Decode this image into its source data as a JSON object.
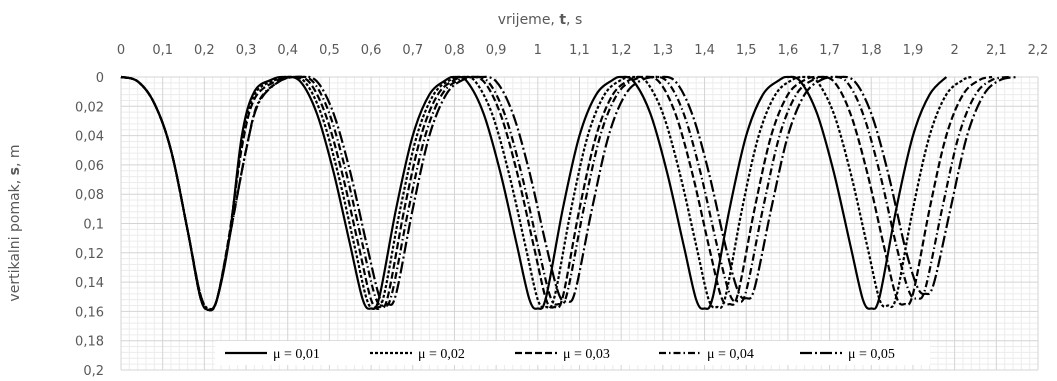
{
  "chart_data": {
    "type": "line",
    "title": "",
    "xlabel_parts": [
      "vrijeme, ",
      "t",
      ", s"
    ],
    "ylabel_parts": [
      "vertikalni pomak, ",
      "s",
      ", m"
    ],
    "xlim": [
      0,
      2.2
    ],
    "ylim": [
      0,
      0.2
    ],
    "y_inverted": true,
    "x_axis_position": "top",
    "x_ticks": [
      "0",
      "0,1",
      "0,2",
      "0,3",
      "0,4",
      "0,5",
      "0,6",
      "0,7",
      "0,8",
      "0,9",
      "1",
      "1,1",
      "1,2",
      "1,3",
      "1,4",
      "1,5",
      "1,6",
      "1,7",
      "1,8",
      "1,9",
      "2",
      "2,1",
      "2,2"
    ],
    "y_ticks": [
      "0",
      "0,02",
      "0,04",
      "0,06",
      "0,08",
      "0,1",
      "0,12",
      "0,14",
      "0,16",
      "0,18",
      "0,2"
    ],
    "grid": "major and minor",
    "legend_position": "bottom-inside",
    "series": [
      {
        "name": "μ = 0,01",
        "dash": "solid",
        "points": [
          [
            0,
            0
          ],
          [
            0.04,
            0.003
          ],
          [
            0.08,
            0.018
          ],
          [
            0.12,
            0.05
          ],
          [
            0.16,
            0.105
          ],
          [
            0.19,
            0.15
          ],
          [
            0.21,
            0.159
          ],
          [
            0.23,
            0.152
          ],
          [
            0.26,
            0.11
          ],
          [
            0.29,
            0.04
          ],
          [
            0.32,
            0.01
          ],
          [
            0.36,
            0.002
          ],
          [
            0.39,
            0
          ],
          [
            0.43,
            0.003
          ],
          [
            0.47,
            0.025
          ],
          [
            0.51,
            0.065
          ],
          [
            0.55,
            0.115
          ],
          [
            0.58,
            0.152
          ],
          [
            0.6,
            0.158
          ],
          [
            0.62,
            0.15
          ],
          [
            0.66,
            0.09
          ],
          [
            0.7,
            0.04
          ],
          [
            0.74,
            0.012
          ],
          [
            0.78,
            0.002
          ],
          [
            0.8,
            0
          ],
          [
            0.83,
            0.003
          ],
          [
            0.87,
            0.025
          ],
          [
            0.91,
            0.065
          ],
          [
            0.95,
            0.115
          ],
          [
            0.98,
            0.152
          ],
          [
            1.0,
            0.158
          ],
          [
            1.02,
            0.15
          ],
          [
            1.06,
            0.09
          ],
          [
            1.1,
            0.04
          ],
          [
            1.14,
            0.012
          ],
          [
            1.18,
            0.002
          ],
          [
            1.2,
            0
          ],
          [
            1.23,
            0.003
          ],
          [
            1.27,
            0.025
          ],
          [
            1.31,
            0.065
          ],
          [
            1.35,
            0.115
          ],
          [
            1.38,
            0.152
          ],
          [
            1.4,
            0.158
          ],
          [
            1.42,
            0.15
          ],
          [
            1.46,
            0.09
          ],
          [
            1.5,
            0.04
          ],
          [
            1.54,
            0.012
          ],
          [
            1.58,
            0.002
          ],
          [
            1.6,
            0
          ],
          [
            1.63,
            0.003
          ],
          [
            1.67,
            0.025
          ],
          [
            1.71,
            0.065
          ],
          [
            1.75,
            0.115
          ],
          [
            1.78,
            0.152
          ],
          [
            1.8,
            0.158
          ],
          [
            1.82,
            0.15
          ],
          [
            1.86,
            0.09
          ],
          [
            1.9,
            0.04
          ],
          [
            1.94,
            0.012
          ],
          [
            1.98,
            0
          ]
        ]
      },
      {
        "name": "μ = 0,02",
        "dash": "short-dash",
        "points": [
          [
            0,
            0
          ],
          [
            0.04,
            0.003
          ],
          [
            0.08,
            0.018
          ],
          [
            0.12,
            0.05
          ],
          [
            0.16,
            0.105
          ],
          [
            0.19,
            0.15
          ],
          [
            0.21,
            0.159
          ],
          [
            0.23,
            0.152
          ],
          [
            0.26,
            0.108
          ],
          [
            0.29,
            0.045
          ],
          [
            0.32,
            0.012
          ],
          [
            0.37,
            0.002
          ],
          [
            0.4,
            0
          ],
          [
            0.44,
            0.003
          ],
          [
            0.48,
            0.025
          ],
          [
            0.52,
            0.065
          ],
          [
            0.56,
            0.115
          ],
          [
            0.59,
            0.152
          ],
          [
            0.61,
            0.158
          ],
          [
            0.63,
            0.15
          ],
          [
            0.67,
            0.09
          ],
          [
            0.71,
            0.04
          ],
          [
            0.75,
            0.012
          ],
          [
            0.79,
            0.002
          ],
          [
            0.82,
            0
          ],
          [
            0.85,
            0.003
          ],
          [
            0.89,
            0.025
          ],
          [
            0.93,
            0.065
          ],
          [
            0.97,
            0.115
          ],
          [
            1.0,
            0.152
          ],
          [
            1.02,
            0.157
          ],
          [
            1.04,
            0.15
          ],
          [
            1.08,
            0.09
          ],
          [
            1.12,
            0.04
          ],
          [
            1.16,
            0.012
          ],
          [
            1.2,
            0.002
          ],
          [
            1.23,
            0
          ],
          [
            1.26,
            0.003
          ],
          [
            1.3,
            0.025
          ],
          [
            1.34,
            0.065
          ],
          [
            1.38,
            0.115
          ],
          [
            1.41,
            0.152
          ],
          [
            1.43,
            0.157
          ],
          [
            1.45,
            0.15
          ],
          [
            1.49,
            0.09
          ],
          [
            1.53,
            0.04
          ],
          [
            1.57,
            0.012
          ],
          [
            1.61,
            0.002
          ],
          [
            1.64,
            0
          ],
          [
            1.67,
            0.003
          ],
          [
            1.71,
            0.025
          ],
          [
            1.75,
            0.065
          ],
          [
            1.79,
            0.115
          ],
          [
            1.82,
            0.152
          ],
          [
            1.84,
            0.156
          ],
          [
            1.86,
            0.15
          ],
          [
            1.9,
            0.09
          ],
          [
            1.94,
            0.04
          ],
          [
            1.98,
            0.012
          ],
          [
            2.02,
            0.002
          ],
          [
            2.04,
            0
          ]
        ]
      },
      {
        "name": "μ = 0,03",
        "dash": "dash",
        "points": [
          [
            0,
            0
          ],
          [
            0.04,
            0.003
          ],
          [
            0.08,
            0.018
          ],
          [
            0.12,
            0.05
          ],
          [
            0.16,
            0.105
          ],
          [
            0.19,
            0.15
          ],
          [
            0.21,
            0.159
          ],
          [
            0.23,
            0.152
          ],
          [
            0.26,
            0.107
          ],
          [
            0.29,
            0.048
          ],
          [
            0.32,
            0.015
          ],
          [
            0.37,
            0.003
          ],
          [
            0.41,
            0
          ],
          [
            0.45,
            0.003
          ],
          [
            0.49,
            0.025
          ],
          [
            0.53,
            0.065
          ],
          [
            0.57,
            0.115
          ],
          [
            0.6,
            0.152
          ],
          [
            0.62,
            0.157
          ],
          [
            0.64,
            0.15
          ],
          [
            0.68,
            0.09
          ],
          [
            0.72,
            0.04
          ],
          [
            0.76,
            0.012
          ],
          [
            0.8,
            0.002
          ],
          [
            0.83,
            0
          ],
          [
            0.87,
            0.003
          ],
          [
            0.91,
            0.025
          ],
          [
            0.95,
            0.065
          ],
          [
            0.99,
            0.115
          ],
          [
            1.02,
            0.152
          ],
          [
            1.04,
            0.157
          ],
          [
            1.06,
            0.15
          ],
          [
            1.1,
            0.09
          ],
          [
            1.14,
            0.04
          ],
          [
            1.18,
            0.012
          ],
          [
            1.22,
            0.002
          ],
          [
            1.25,
            0
          ],
          [
            1.29,
            0.003
          ],
          [
            1.33,
            0.025
          ],
          [
            1.37,
            0.065
          ],
          [
            1.41,
            0.115
          ],
          [
            1.44,
            0.15
          ],
          [
            1.46,
            0.155
          ],
          [
            1.48,
            0.148
          ],
          [
            1.52,
            0.09
          ],
          [
            1.56,
            0.04
          ],
          [
            1.6,
            0.012
          ],
          [
            1.64,
            0.002
          ],
          [
            1.67,
            0
          ],
          [
            1.71,
            0.003
          ],
          [
            1.75,
            0.025
          ],
          [
            1.79,
            0.065
          ],
          [
            1.83,
            0.115
          ],
          [
            1.86,
            0.15
          ],
          [
            1.88,
            0.155
          ],
          [
            1.9,
            0.148
          ],
          [
            1.94,
            0.09
          ],
          [
            1.98,
            0.04
          ],
          [
            2.02,
            0.012
          ],
          [
            2.06,
            0.002
          ],
          [
            2.09,
            0
          ]
        ]
      },
      {
        "name": "μ = 0,04",
        "dash": "dash-dot",
        "points": [
          [
            0,
            0
          ],
          [
            0.04,
            0.003
          ],
          [
            0.08,
            0.018
          ],
          [
            0.12,
            0.05
          ],
          [
            0.16,
            0.105
          ],
          [
            0.19,
            0.148
          ],
          [
            0.21,
            0.158
          ],
          [
            0.23,
            0.152
          ],
          [
            0.26,
            0.11
          ],
          [
            0.3,
            0.05
          ],
          [
            0.33,
            0.017
          ],
          [
            0.38,
            0.003
          ],
          [
            0.42,
            0
          ],
          [
            0.46,
            0.003
          ],
          [
            0.5,
            0.025
          ],
          [
            0.54,
            0.065
          ],
          [
            0.58,
            0.115
          ],
          [
            0.61,
            0.15
          ],
          [
            0.63,
            0.156
          ],
          [
            0.65,
            0.148
          ],
          [
            0.69,
            0.09
          ],
          [
            0.73,
            0.04
          ],
          [
            0.77,
            0.012
          ],
          [
            0.81,
            0.002
          ],
          [
            0.84,
            0
          ],
          [
            0.88,
            0.003
          ],
          [
            0.92,
            0.025
          ],
          [
            0.96,
            0.065
          ],
          [
            1.0,
            0.115
          ],
          [
            1.03,
            0.15
          ],
          [
            1.05,
            0.155
          ],
          [
            1.07,
            0.148
          ],
          [
            1.11,
            0.09
          ],
          [
            1.15,
            0.04
          ],
          [
            1.19,
            0.012
          ],
          [
            1.23,
            0.002
          ],
          [
            1.27,
            0
          ],
          [
            1.31,
            0.003
          ],
          [
            1.35,
            0.025
          ],
          [
            1.39,
            0.065
          ],
          [
            1.43,
            0.115
          ],
          [
            1.46,
            0.148
          ],
          [
            1.48,
            0.153
          ],
          [
            1.5,
            0.146
          ],
          [
            1.54,
            0.09
          ],
          [
            1.58,
            0.04
          ],
          [
            1.62,
            0.012
          ],
          [
            1.66,
            0.002
          ],
          [
            1.7,
            0
          ],
          [
            1.74,
            0.003
          ],
          [
            1.78,
            0.025
          ],
          [
            1.82,
            0.065
          ],
          [
            1.86,
            0.115
          ],
          [
            1.89,
            0.146
          ],
          [
            1.91,
            0.151
          ],
          [
            1.93,
            0.144
          ],
          [
            1.97,
            0.09
          ],
          [
            2.01,
            0.04
          ],
          [
            2.05,
            0.012
          ],
          [
            2.09,
            0.002
          ],
          [
            2.13,
            0
          ]
        ]
      },
      {
        "name": "μ = 0,05",
        "dash": "long-dash-dot",
        "points": [
          [
            0,
            0
          ],
          [
            0.04,
            0.003
          ],
          [
            0.08,
            0.018
          ],
          [
            0.12,
            0.05
          ],
          [
            0.16,
            0.105
          ],
          [
            0.19,
            0.148
          ],
          [
            0.21,
            0.158
          ],
          [
            0.23,
            0.152
          ],
          [
            0.26,
            0.11
          ],
          [
            0.3,
            0.05
          ],
          [
            0.33,
            0.018
          ],
          [
            0.38,
            0.003
          ],
          [
            0.43,
            0
          ],
          [
            0.47,
            0.003
          ],
          [
            0.51,
            0.025
          ],
          [
            0.55,
            0.065
          ],
          [
            0.59,
            0.115
          ],
          [
            0.62,
            0.15
          ],
          [
            0.64,
            0.155
          ],
          [
            0.66,
            0.148
          ],
          [
            0.7,
            0.09
          ],
          [
            0.74,
            0.04
          ],
          [
            0.78,
            0.012
          ],
          [
            0.82,
            0.002
          ],
          [
            0.86,
            0
          ],
          [
            0.9,
            0.003
          ],
          [
            0.94,
            0.025
          ],
          [
            0.98,
            0.065
          ],
          [
            1.02,
            0.115
          ],
          [
            1.05,
            0.148
          ],
          [
            1.07,
            0.153
          ],
          [
            1.09,
            0.146
          ],
          [
            1.13,
            0.09
          ],
          [
            1.17,
            0.04
          ],
          [
            1.21,
            0.012
          ],
          [
            1.25,
            0.002
          ],
          [
            1.29,
            0
          ],
          [
            1.33,
            0.003
          ],
          [
            1.37,
            0.025
          ],
          [
            1.41,
            0.065
          ],
          [
            1.45,
            0.115
          ],
          [
            1.48,
            0.146
          ],
          [
            1.5,
            0.151
          ],
          [
            1.52,
            0.144
          ],
          [
            1.56,
            0.09
          ],
          [
            1.6,
            0.04
          ],
          [
            1.64,
            0.012
          ],
          [
            1.68,
            0.002
          ],
          [
            1.72,
            0
          ],
          [
            1.76,
            0.003
          ],
          [
            1.8,
            0.025
          ],
          [
            1.84,
            0.065
          ],
          [
            1.88,
            0.115
          ],
          [
            1.91,
            0.143
          ],
          [
            1.93,
            0.148
          ],
          [
            1.95,
            0.141
          ],
          [
            1.99,
            0.09
          ],
          [
            2.03,
            0.04
          ],
          [
            2.07,
            0.012
          ],
          [
            2.11,
            0.002
          ],
          [
            2.15,
            0
          ]
        ]
      }
    ]
  }
}
